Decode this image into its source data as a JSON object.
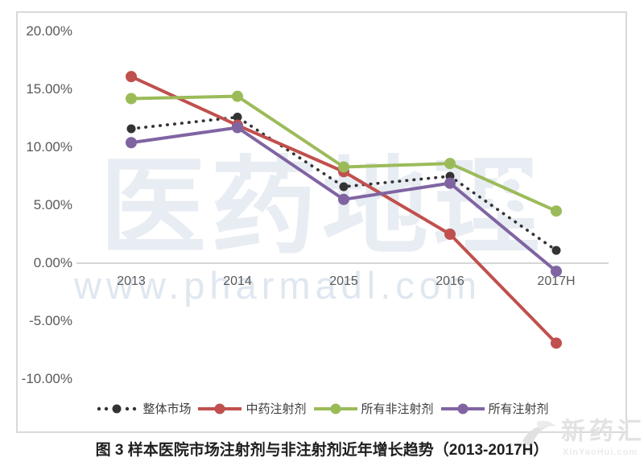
{
  "caption": "图 3  样本医院市场注射剂与非注射剂近年增长趋势（2013-2017H）",
  "watermark": {
    "brand": "医药地理",
    "url": "www.pharmadl.com"
  },
  "logo": {
    "name": "新药汇",
    "domain": "XinYaoHui.com"
  },
  "colors": {
    "overall_market": "#333333",
    "tcm_injection": "#C0504D",
    "non_injection": "#9BBB59",
    "all_injection": "#8064A2",
    "axis_text": "#595959",
    "zero_line": "#c8c8c8",
    "frame_border": "#d9d9d9",
    "watermark_text": "#e8edf3"
  },
  "chart_data": {
    "type": "line",
    "categories": [
      "2013",
      "2014",
      "2015",
      "2016",
      "2017H"
    ],
    "series": [
      {
        "name": "整体市场",
        "style": "dotted",
        "color": "#333333",
        "values": [
          11.6,
          12.6,
          6.6,
          7.5,
          1.1
        ]
      },
      {
        "name": "中药注射剂",
        "style": "solid",
        "color": "#C0504D",
        "values": [
          16.1,
          11.9,
          7.9,
          2.5,
          -6.9
        ]
      },
      {
        "name": "所有非注射剂",
        "style": "solid",
        "color": "#9BBB59",
        "values": [
          14.2,
          14.4,
          8.3,
          8.6,
          4.5
        ]
      },
      {
        "name": "所有注射剂",
        "style": "solid",
        "color": "#8064A2",
        "values": [
          10.4,
          11.7,
          5.5,
          6.9,
          -0.7
        ]
      }
    ],
    "title": "",
    "xlabel": "",
    "ylabel": "",
    "ylim": [
      -10,
      20
    ],
    "yticks": [
      20,
      15,
      10,
      5,
      0,
      -5,
      -10
    ],
    "ytick_format": "0.00%",
    "grid": false,
    "legend_position": "bottom"
  }
}
